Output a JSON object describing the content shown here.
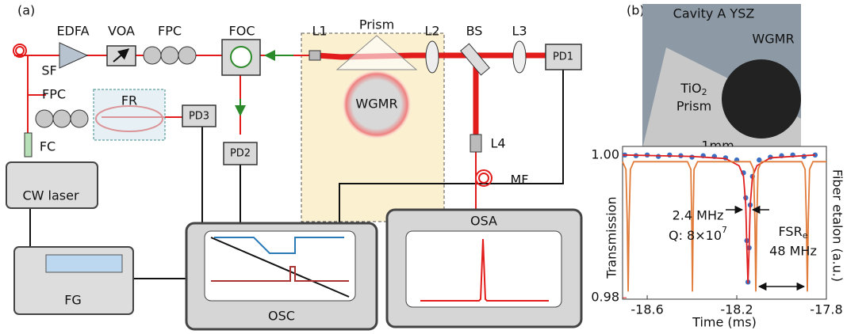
{
  "panels": {
    "a": "(a)",
    "b": "(b)"
  },
  "components": {
    "sf": "SF",
    "edfa": "EDFA",
    "voa": "VOA",
    "fpc1": "FPC",
    "fpc2": "FPC",
    "fr": "FR",
    "fc": "FC",
    "cw_laser": "CW laser",
    "fg": "FG",
    "foc": "FOC",
    "pd1": "PD1",
    "pd2": "PD2",
    "pd3": "PD3",
    "l1": "L1",
    "prism": "Prism",
    "wgmr": "WGMR",
    "l2": "L2",
    "bs": "BS",
    "l3": "L3",
    "l4": "L4",
    "mf": "MF",
    "osc": "OSC",
    "osa": "OSA"
  },
  "photo": {
    "title": "Cavity A YSZ",
    "wgmr": "WGMR",
    "prism_main": "TiO",
    "prism_sub": "2",
    "prism_line2": "Prism",
    "scale": "1mm"
  },
  "chart_data": {
    "type": "line",
    "xlabel": "Time (ms)",
    "ylabel": "Transmission",
    "y2label": "Fiber etalon (a.u.)",
    "xlim": [
      -18.71,
      -17.8
    ],
    "xticks": [
      -18.6,
      -18.2,
      -17.8
    ],
    "ylim": [
      0.9798,
      1.0012
    ],
    "yticks": [
      {
        "value": 1,
        "label": "1.00"
      },
      {
        "value": 0.98,
        "label": "0.98"
      }
    ],
    "y2lim": [
      0,
      1
    ],
    "series": [
      {
        "color": "#3a6fc4",
        "style": "markers",
        "x": [
          -18.7,
          -18.65,
          -18.6,
          -18.55,
          -18.5,
          -18.45,
          -18.4,
          -18.35,
          -18.3,
          -18.25,
          -18.2,
          -18.17,
          -18.16,
          -18.155,
          -18.15,
          -18.145,
          -18.14,
          -18.13,
          -18.1,
          -18.05,
          -18.0,
          -17.95,
          -17.9,
          -17.85
        ],
        "values": [
          1.0,
          0.9999,
          1.0,
          0.9998,
          1.0,
          0.9999,
          0.9997,
          0.9999,
          0.9998,
          0.9996,
          0.9993,
          0.9975,
          0.994,
          0.988,
          0.9822,
          0.987,
          0.993,
          0.997,
          0.9993,
          0.9997,
          0.9999,
          1.0,
          0.9998,
          1.0
        ]
      },
      {
        "color": "#e02020",
        "style": "line",
        "x": [
          -18.71,
          -18.4,
          -18.25,
          -18.19,
          -18.17,
          -18.16,
          -18.155,
          -18.15,
          -18.145,
          -18.14,
          -18.13,
          -18.11,
          -18.05,
          -17.85
        ],
        "values": [
          1.0,
          0.9998,
          0.9995,
          0.9985,
          0.997,
          0.993,
          0.987,
          0.982,
          0.987,
          0.993,
          0.997,
          0.9985,
          0.9996,
          1.0
        ]
      },
      {
        "color": "#e07b39",
        "style": "line",
        "axis": "y2",
        "x": [
          -18.71,
          -18.695,
          -18.689,
          -18.685,
          -18.681,
          -18.675,
          -18.66,
          -18.42,
          -18.405,
          -18.401,
          -18.398,
          -18.395,
          -18.391,
          -18.375,
          -18.14,
          -18.125,
          -18.119,
          -18.115,
          -18.111,
          -18.105,
          -18.09,
          -17.91,
          -17.895,
          -17.889,
          -17.885,
          -17.881,
          -17.875,
          -17.86,
          -17.8
        ],
        "values": [
          0.9,
          0.85,
          0.5,
          0.05,
          0.5,
          0.85,
          0.9,
          0.9,
          0.85,
          0.5,
          0.05,
          0.5,
          0.85,
          0.9,
          0.9,
          0.85,
          0.5,
          0.05,
          0.5,
          0.85,
          0.9,
          0.9,
          0.85,
          0.5,
          0.05,
          0.5,
          0.85,
          0.9,
          0.9
        ]
      }
    ],
    "annotations": {
      "linewidth": "2.4 MHz",
      "q_main": "Q: 8×10",
      "q_sup": "7",
      "fsr_main": "FSR",
      "fsr_sub": "e",
      "fsr_value": "48 MHz"
    }
  }
}
